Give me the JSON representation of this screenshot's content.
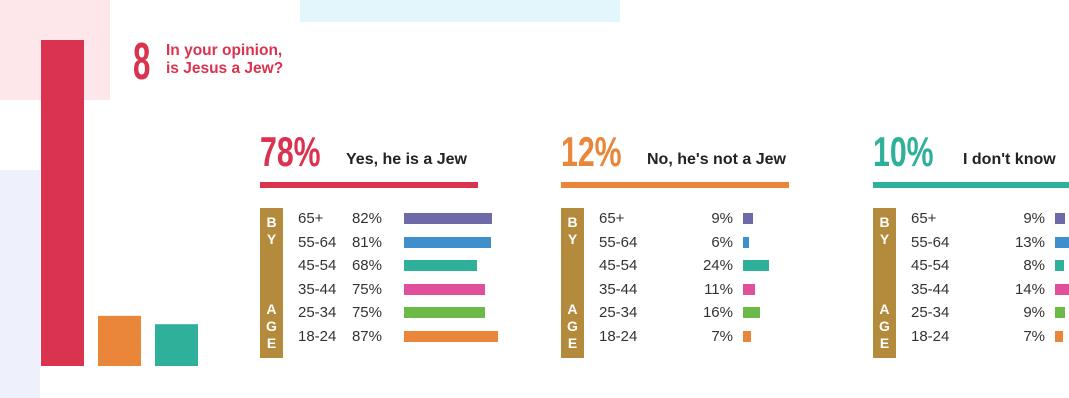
{
  "question": {
    "number": "8",
    "text_line1": "In your opinion,",
    "text_line2": "is Jesus a Jew?"
  },
  "age_label_top": [
    "B",
    "Y"
  ],
  "age_label_bottom": [
    "A",
    "G",
    "E"
  ],
  "colors": {
    "title": "#d9334f",
    "age_tab": "#b48a3c",
    "age_bars": [
      "#6e6aa8",
      "#3f8fcc",
      "#2fb09a",
      "#e0509a",
      "#6cbb49",
      "#e9863a"
    ]
  },
  "chart_data": [
    {
      "type": "bar",
      "title": "",
      "categories": [
        "Yes, he is a Jew",
        "No, he's not a Jew",
        "I don't know"
      ],
      "values": [
        78,
        12,
        10
      ],
      "unit": "%",
      "colors": [
        "#d9334f",
        "#e9863a",
        "#2fb09a"
      ]
    },
    {
      "type": "bar",
      "headline": "78%",
      "answer": "Yes, he is a Jew",
      "color": "#d9334f",
      "categories": [
        "65+",
        "55-64",
        "45-54",
        "35-44",
        "25-34",
        "18-24"
      ],
      "values": [
        82,
        81,
        68,
        75,
        75,
        87
      ],
      "labels": [
        "82%",
        "81%",
        "68%",
        "75%",
        "75%",
        "87%"
      ]
    },
    {
      "type": "bar",
      "headline": "12%",
      "answer": "No, he's not a Jew",
      "color": "#e9863a",
      "categories": [
        "65+",
        "55-64",
        "45-54",
        "35-44",
        "25-34",
        "18-24"
      ],
      "values": [
        9,
        6,
        24,
        11,
        16,
        7
      ],
      "labels": [
        "9%",
        "6%",
        "24%",
        "11%",
        "16%",
        "7%"
      ]
    },
    {
      "type": "bar",
      "headline": "10%",
      "answer": "I don't know",
      "color": "#2fb09a",
      "categories": [
        "65+",
        "55-64",
        "45-54",
        "35-44",
        "25-34",
        "18-24"
      ],
      "values": [
        9,
        13,
        8,
        14,
        9,
        7
      ],
      "labels": [
        "9%",
        "13%",
        "8%",
        "14%",
        "9%",
        "7%"
      ]
    }
  ]
}
